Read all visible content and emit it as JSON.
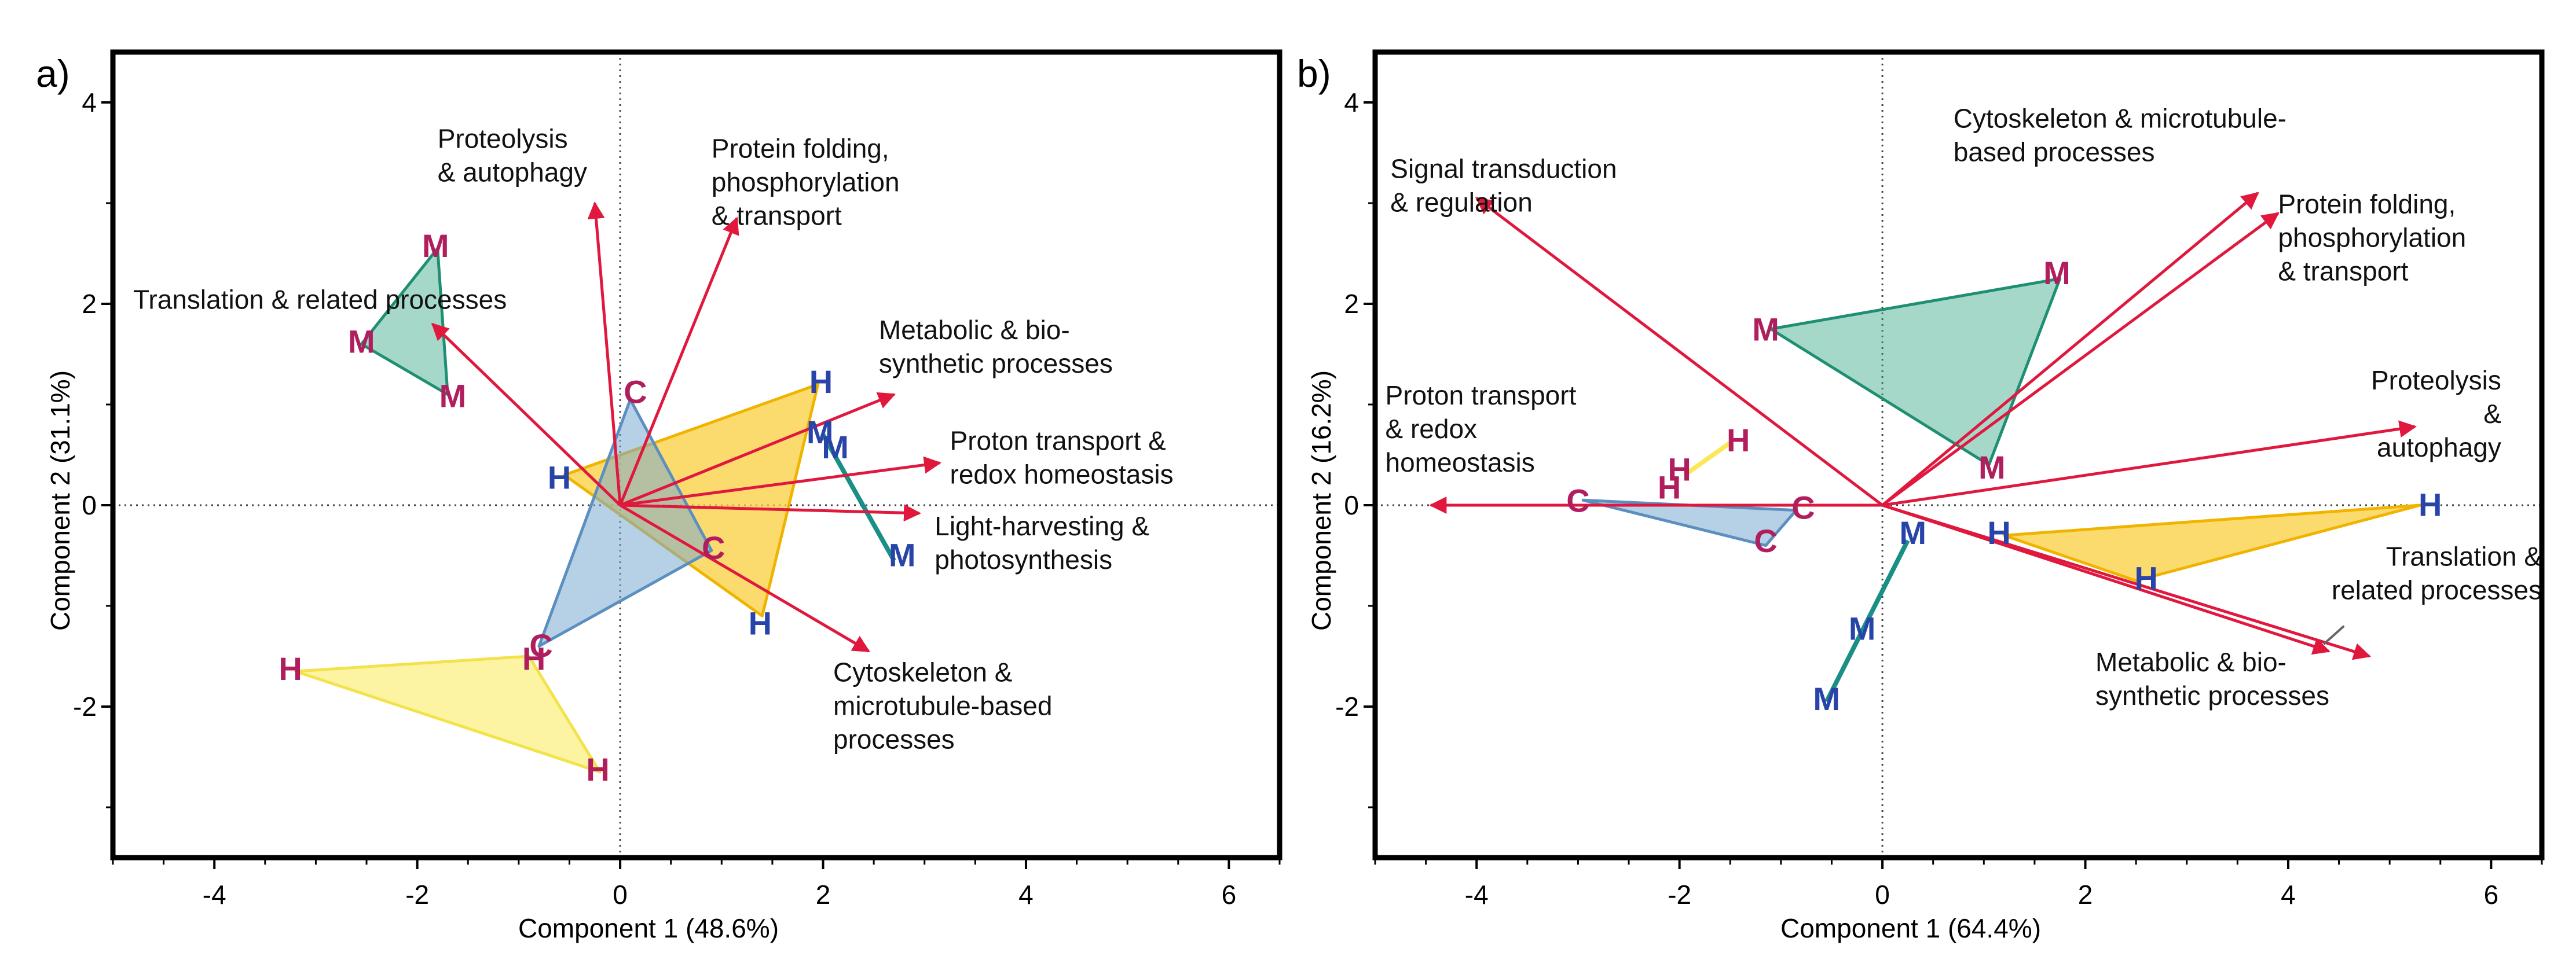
{
  "chart_data": [
    {
      "type": "scatter",
      "panel_label": "a)",
      "xlabel": "Component 1 (48.6%)",
      "ylabel": "Component 2 (31.1%)",
      "xlim": [
        -5,
        6.5
      ],
      "ylim": [
        -3.5,
        4.5
      ],
      "xticks": [
        -4,
        -2,
        0,
        2,
        4,
        6
      ],
      "yticks": [
        -2,
        0,
        2,
        4
      ],
      "xtick_labels": [
        "-4",
        "-2",
        "0",
        "2",
        "4",
        "6"
      ],
      "ytick_labels": [
        "-2",
        "0",
        "2",
        "4"
      ],
      "reference_lines": "dotted lines at x=0 and y=0",
      "groups": [
        {
          "fill": "#3aa98a",
          "stroke": "#1f8f73",
          "opacity": 0.45,
          "points": [
            [
              -1.8,
              2.55
            ],
            [
              -2.55,
              1.6
            ],
            [
              -1.7,
              1.1
            ]
          ]
        },
        {
          "fill": "#fbcf3e",
          "stroke": "#f0b400",
          "opacity": 0.75,
          "points": [
            [
              -0.55,
              0.3
            ],
            [
              1.95,
              1.2
            ],
            [
              1.4,
              -1.1
            ]
          ]
        },
        {
          "fill": "#7aaad0",
          "stroke": "#5b8fbf",
          "opacity": 0.55,
          "points": [
            [
              0.1,
              1.05
            ],
            [
              0.9,
              -0.45
            ],
            [
              -0.8,
              -1.4
            ]
          ]
        },
        {
          "fill": "#fbf07a",
          "stroke": "#f3e24a",
          "opacity": 0.7,
          "points": [
            [
              -3.2,
              -1.65
            ],
            [
              -0.9,
              -1.5
            ],
            [
              -0.2,
              -2.65
            ]
          ]
        },
        {
          "fill": "none",
          "stroke": "#1a8f86",
          "opacity": 1.0,
          "points": [
            [
              2.0,
              0.7
            ],
            [
              2.7,
              -0.55
            ]
          ]
        }
      ],
      "points": [
        {
          "label": "M",
          "color": "#b01e5e",
          "x": -1.82,
          "y": 2.55
        },
        {
          "label": "M",
          "color": "#b01e5e",
          "x": -2.55,
          "y": 1.6
        },
        {
          "label": "M",
          "color": "#b01e5e",
          "x": -1.65,
          "y": 1.06
        },
        {
          "label": "C",
          "color": "#b01e5e",
          "x": 0.15,
          "y": 1.1
        },
        {
          "label": "H",
          "color": "#2844a8",
          "x": -0.6,
          "y": 0.25
        },
        {
          "label": "H",
          "color": "#2844a8",
          "x": 1.98,
          "y": 1.2
        },
        {
          "label": "M",
          "color": "#2844a8",
          "x": 1.97,
          "y": 0.7
        },
        {
          "label": "M",
          "color": "#2844a8",
          "x": 2.12,
          "y": 0.55
        },
        {
          "label": "C",
          "color": "#b01e5e",
          "x": 0.92,
          "y": -0.45
        },
        {
          "label": "M",
          "color": "#2844a8",
          "x": 2.78,
          "y": -0.52
        },
        {
          "label": "H",
          "color": "#2844a8",
          "x": 1.38,
          "y": -1.2
        },
        {
          "label": "C",
          "color": "#b01e5e",
          "x": -0.78,
          "y": -1.42
        },
        {
          "label": "H",
          "color": "#b01e5e",
          "x": -0.85,
          "y": -1.55
        },
        {
          "label": "H",
          "color": "#b01e5e",
          "x": -3.25,
          "y": -1.65
        },
        {
          "label": "H",
          "color": "#b01e5e",
          "x": -0.22,
          "y": -2.65
        }
      ],
      "loadings": [
        {
          "x": -1.85,
          "y": 1.8
        },
        {
          "x": -0.25,
          "y": 3.0
        },
        {
          "x": 1.15,
          "y": 2.85
        },
        {
          "x": 2.7,
          "y": 1.1
        },
        {
          "x": 3.15,
          "y": 0.42
        },
        {
          "x": 2.95,
          "y": -0.08
        },
        {
          "x": 2.45,
          "y": -1.45
        }
      ],
      "annotations": [
        {
          "text": [
            "Proteolysis",
            "& autophagy"
          ],
          "x": -1.8,
          "y": 3.55,
          "align": "start"
        },
        {
          "text": [
            "Protein folding,",
            "phosphorylation",
            "& transport"
          ],
          "x": 0.9,
          "y": 3.45,
          "align": "start"
        },
        {
          "text": [
            "Translation & related processes"
          ],
          "x": -4.8,
          "y": 1.95,
          "align": "start"
        },
        {
          "text": [
            "Metabolic & bio-",
            "synthetic processes"
          ],
          "x": 2.55,
          "y": 1.65,
          "align": "start"
        },
        {
          "text": [
            "Proton transport &",
            "redox homeostasis"
          ],
          "x": 3.25,
          "y": 0.55,
          "align": "start"
        },
        {
          "text": [
            "Light-harvesting &",
            "photosynthesis"
          ],
          "x": 3.1,
          "y": -0.3,
          "align": "start"
        },
        {
          "text": [
            "Cytoskeleton &",
            "microtubule-based",
            "processes"
          ],
          "x": 2.1,
          "y": -1.75,
          "align": "start"
        }
      ]
    },
    {
      "type": "scatter",
      "panel_label": "b)",
      "xlabel": "Component 1 (64.4%)",
      "ylabel": "Component 2 (16.2%)",
      "xlim": [
        -5,
        6.5
      ],
      "ylim": [
        -3.5,
        4.5
      ],
      "xticks": [
        -4,
        -2,
        0,
        2,
        4,
        6
      ],
      "yticks": [
        -2,
        0,
        2,
        4
      ],
      "xtick_labels": [
        "-4",
        "-2",
        "0",
        "2",
        "4",
        "6"
      ],
      "ytick_labels": [
        "-2",
        "0",
        "2",
        "4"
      ],
      "reference_lines": "dotted lines at x=0 and y=0",
      "groups": [
        {
          "fill": "#3aa98a",
          "stroke": "#1f8f73",
          "opacity": 0.45,
          "points": [
            [
              -1.1,
              1.75
            ],
            [
              1.75,
              2.25
            ],
            [
              1.05,
              0.4
            ]
          ]
        },
        {
          "fill": "#fbcf3e",
          "stroke": "#f0b400",
          "opacity": 0.75,
          "points": [
            [
              1.2,
              -0.3
            ],
            [
              5.3,
              0.0
            ],
            [
              2.5,
              -0.75
            ]
          ]
        },
        {
          "fill": "#7aaad0",
          "stroke": "#5b8fbf",
          "opacity": 0.55,
          "points": [
            [
              -2.95,
              0.05
            ],
            [
              -0.85,
              -0.05
            ],
            [
              -1.15,
              -0.4
            ]
          ]
        },
        {
          "fill": "none",
          "stroke": "#fbe85a",
          "opacity": 1.0,
          "points": [
            [
              -1.95,
              0.3
            ],
            [
              -1.5,
              0.62
            ]
          ]
        },
        {
          "fill": "none",
          "stroke": "#1a8f86",
          "opacity": 1.0,
          "points": [
            [
              0.25,
              -0.35
            ],
            [
              -0.55,
              -1.95
            ]
          ]
        }
      ],
      "points": [
        {
          "label": "M",
          "color": "#b01e5e",
          "x": 1.72,
          "y": 2.28
        },
        {
          "label": "M",
          "color": "#b01e5e",
          "x": -1.15,
          "y": 1.72
        },
        {
          "label": "M",
          "color": "#b01e5e",
          "x": 1.08,
          "y": 0.35
        },
        {
          "label": "H",
          "color": "#b01e5e",
          "x": -1.42,
          "y": 0.62
        },
        {
          "label": "H",
          "color": "#b01e5e",
          "x": -2.0,
          "y": 0.33
        },
        {
          "label": "H",
          "color": "#b01e5e",
          "x": -2.1,
          "y": 0.15
        },
        {
          "label": "C",
          "color": "#b01e5e",
          "x": -3.0,
          "y": 0.02
        },
        {
          "label": "C",
          "color": "#b01e5e",
          "x": -0.78,
          "y": -0.05
        },
        {
          "label": "C",
          "color": "#b01e5e",
          "x": -1.15,
          "y": -0.38
        },
        {
          "label": "M",
          "color": "#2844a8",
          "x": 0.3,
          "y": -0.3
        },
        {
          "label": "H",
          "color": "#2844a8",
          "x": 1.15,
          "y": -0.3
        },
        {
          "label": "H",
          "color": "#2844a8",
          "x": 5.4,
          "y": -0.02
        },
        {
          "label": "H",
          "color": "#2844a8",
          "x": 2.6,
          "y": -0.75
        },
        {
          "label": "M",
          "color": "#2844a8",
          "x": -0.2,
          "y": -1.25
        },
        {
          "label": "M",
          "color": "#2844a8",
          "x": -0.55,
          "y": -1.95
        }
      ],
      "loadings": [
        {
          "x": -4.0,
          "y": 3.05
        },
        {
          "x": -4.45,
          "y": 0.0
        },
        {
          "x": 3.7,
          "y": 3.1
        },
        {
          "x": 3.9,
          "y": 2.9
        },
        {
          "x": 5.25,
          "y": 0.78
        },
        {
          "x": 4.4,
          "y": -1.45
        },
        {
          "x": 4.8,
          "y": -1.5
        }
      ],
      "annotations": [
        {
          "text": [
            "Signal transduction",
            "& regulation"
          ],
          "x": -4.85,
          "y": 3.25,
          "align": "start"
        },
        {
          "text": [
            "Cytoskeleton & microtubule-",
            "based processes"
          ],
          "x": 0.7,
          "y": 3.75,
          "align": "start"
        },
        {
          "text": [
            "Protein folding,",
            "phosphorylation",
            "& transport"
          ],
          "x": 3.9,
          "y": 2.9,
          "align": "start"
        },
        {
          "text": [
            "Proton transport",
            "& redox",
            "homeostasis"
          ],
          "x": -4.9,
          "y": 1.0,
          "align": "start"
        },
        {
          "text": [
            "Proteolysis",
            "&",
            "autophagy"
          ],
          "x": 6.1,
          "y": 1.15,
          "align": "end"
        },
        {
          "text": [
            "Translation &",
            "related processes"
          ],
          "x": 6.5,
          "y": -0.6,
          "align": "end"
        },
        {
          "text": [
            "Metabolic & bio-",
            "synthetic processes"
          ],
          "x": 2.1,
          "y": -1.65,
          "align": "start"
        }
      ]
    }
  ]
}
